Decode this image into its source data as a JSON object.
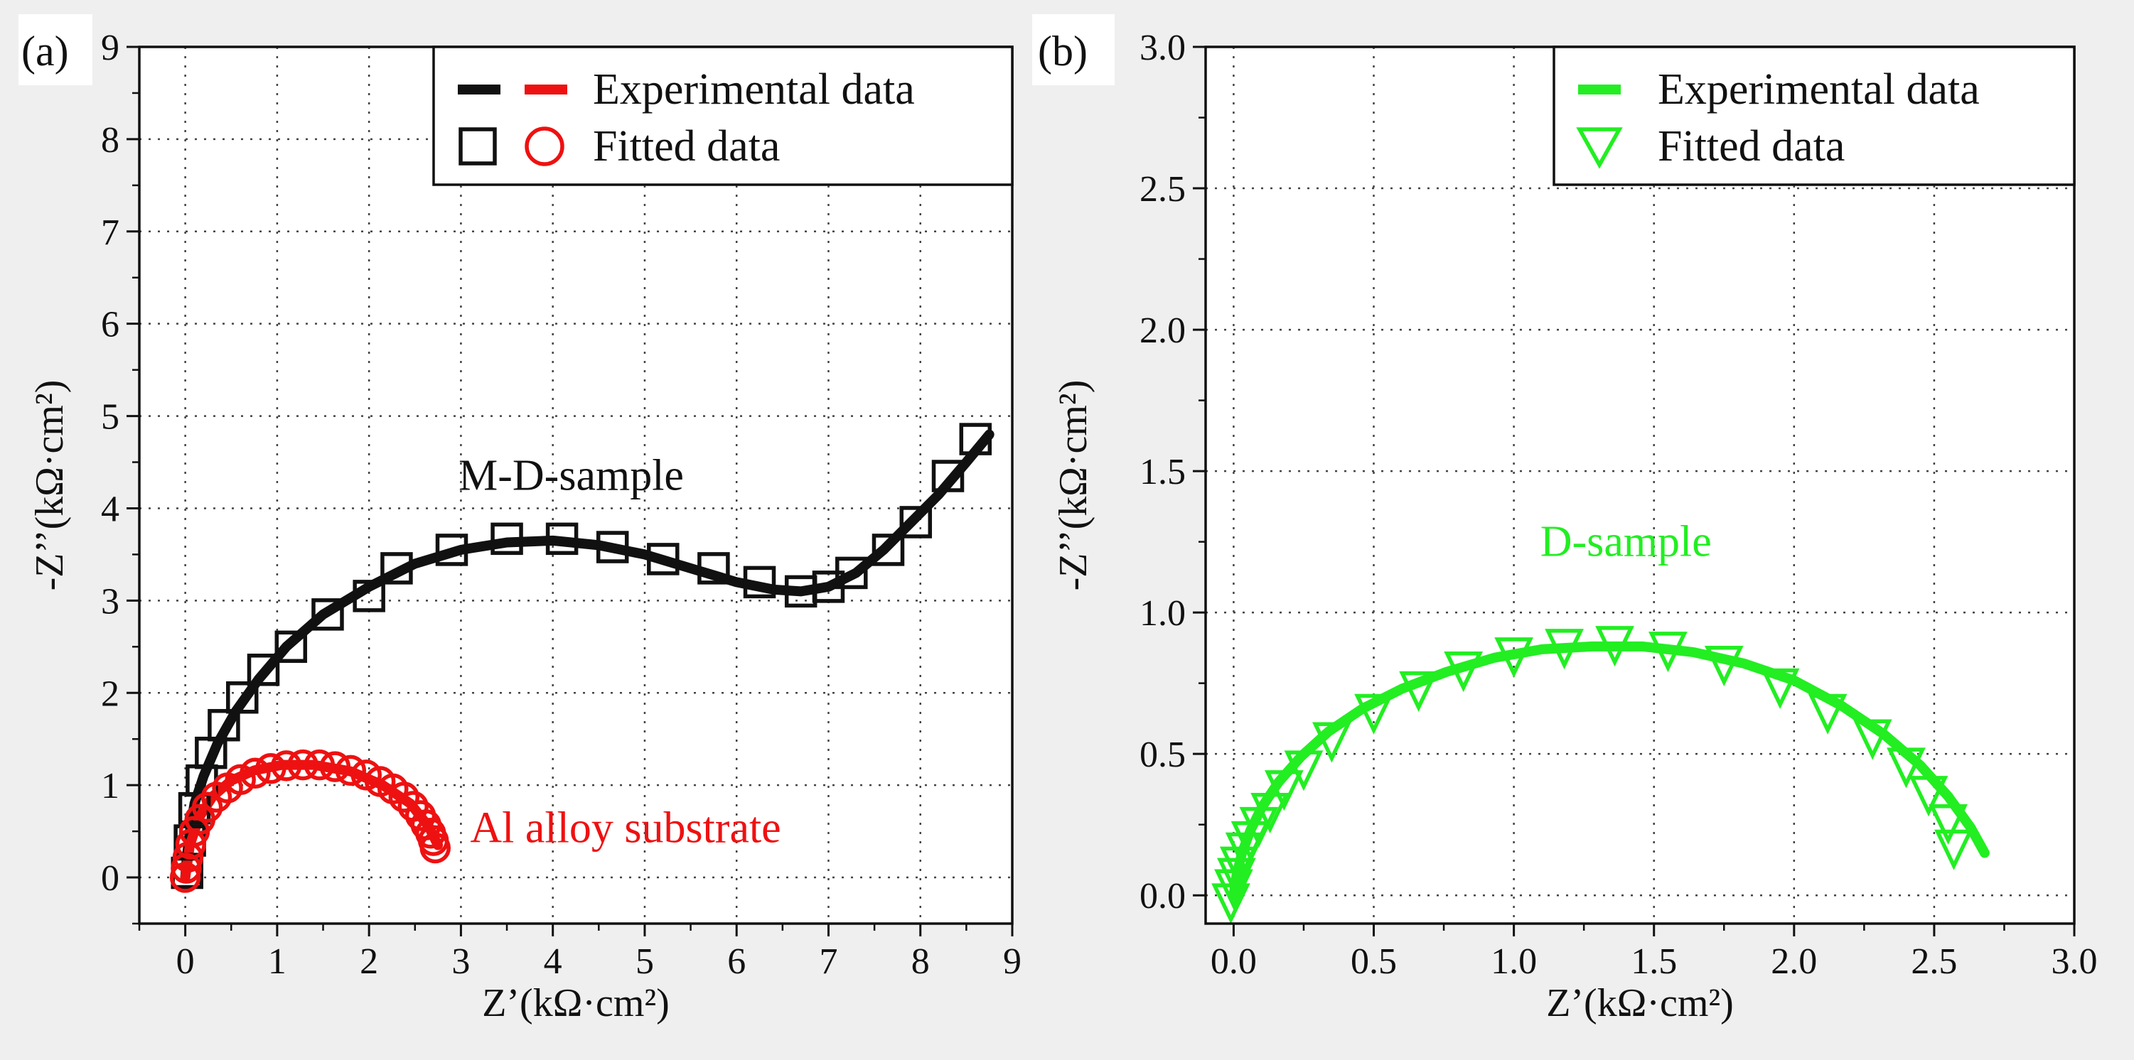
{
  "chart_data": [
    {
      "type": "scatter",
      "panel_label": "(a)",
      "xlabel": "Z’(kΩ·cm²)",
      "ylabel": "-Z’’(kΩ·cm²)",
      "xlim": [
        -0.5,
        9
      ],
      "ylim": [
        -0.5,
        9
      ],
      "xticks": [
        0,
        1,
        2,
        3,
        4,
        5,
        6,
        7,
        8,
        9
      ],
      "yticks": [
        0,
        1,
        2,
        3,
        4,
        5,
        6,
        7,
        8,
        9
      ],
      "grid": true,
      "legend_position": "top-right",
      "legend": [
        {
          "label": "Experimental data",
          "markers": [
            "black-line",
            "red-line"
          ]
        },
        {
          "label": "Fitted data",
          "markers": [
            "black-square",
            "red-circle"
          ]
        }
      ],
      "annotations": [
        {
          "text": "M-D-sample",
          "color": "#111111",
          "x": 4.2,
          "y": 4.2
        },
        {
          "text": "Al alloy substrate",
          "color": "#ee1111",
          "x": 3.1,
          "y": 0.38
        }
      ],
      "series": [
        {
          "name": "M-D-sample experimental",
          "kind": "line",
          "color": "#111111",
          "x": [
            0.0,
            0.02,
            0.05,
            0.1,
            0.2,
            0.35,
            0.55,
            0.8,
            1.1,
            1.5,
            2.0,
            2.5,
            3.0,
            3.5,
            4.0,
            4.5,
            5.0,
            5.5,
            6.0,
            6.4,
            6.7,
            7.0,
            7.3,
            7.6,
            7.9,
            8.2,
            8.5,
            8.75
          ],
          "y": [
            0.0,
            0.25,
            0.5,
            0.8,
            1.1,
            1.45,
            1.8,
            2.15,
            2.5,
            2.85,
            3.15,
            3.4,
            3.55,
            3.63,
            3.65,
            3.6,
            3.5,
            3.35,
            3.2,
            3.12,
            3.1,
            3.15,
            3.3,
            3.55,
            3.85,
            4.15,
            4.5,
            4.8
          ]
        },
        {
          "name": "M-D-sample fitted",
          "kind": "square",
          "color": "#111111",
          "x": [
            0.02,
            0.05,
            0.1,
            0.18,
            0.28,
            0.42,
            0.62,
            0.85,
            1.15,
            1.55,
            2.0,
            2.3,
            2.9,
            3.5,
            4.1,
            4.65,
            5.2,
            5.75,
            6.25,
            6.7,
            7.0,
            7.25,
            7.65,
            7.95,
            8.3,
            8.6
          ],
          "y": [
            0.05,
            0.4,
            0.75,
            1.05,
            1.35,
            1.65,
            1.95,
            2.25,
            2.5,
            2.85,
            3.05,
            3.35,
            3.55,
            3.67,
            3.67,
            3.58,
            3.45,
            3.35,
            3.2,
            3.1,
            3.15,
            3.3,
            3.55,
            3.85,
            4.35,
            4.75
          ]
        },
        {
          "name": "Al alloy substrate experimental",
          "kind": "line",
          "color": "#ee1111",
          "x": [
            0.0,
            0.05,
            0.15,
            0.3,
            0.5,
            0.75,
            1.05,
            1.4,
            1.8,
            2.15,
            2.45,
            2.65,
            2.75
          ],
          "y": [
            0.0,
            0.35,
            0.65,
            0.88,
            1.05,
            1.16,
            1.22,
            1.22,
            1.15,
            1.0,
            0.8,
            0.55,
            0.35
          ]
        },
        {
          "name": "Al alloy substrate fitted",
          "kind": "circle",
          "color": "#ee1111",
          "x": [
            0.0,
            0.01,
            0.03,
            0.06,
            0.1,
            0.16,
            0.24,
            0.34,
            0.46,
            0.6,
            0.76,
            0.93,
            1.1,
            1.28,
            1.46,
            1.63,
            1.8,
            1.97,
            2.12,
            2.26,
            2.38,
            2.48,
            2.56,
            2.62,
            2.67,
            2.7,
            2.72
          ],
          "y": [
            0.0,
            0.1,
            0.22,
            0.36,
            0.5,
            0.63,
            0.76,
            0.87,
            0.97,
            1.06,
            1.13,
            1.18,
            1.21,
            1.22,
            1.22,
            1.2,
            1.16,
            1.11,
            1.04,
            0.96,
            0.87,
            0.77,
            0.67,
            0.57,
            0.48,
            0.4,
            0.32
          ]
        }
      ]
    },
    {
      "type": "scatter",
      "panel_label": "(b)",
      "xlabel": "Z’(kΩ·cm²)",
      "ylabel": "-Z’’(kΩ·cm²)",
      "xlim": [
        -0.1,
        3.0
      ],
      "ylim": [
        -0.1,
        3.0
      ],
      "xticks": [
        0.0,
        0.5,
        1.0,
        1.5,
        2.0,
        2.5,
        3.0
      ],
      "xtick_labels": [
        "0.0",
        "0.5",
        "1.0",
        "1.5",
        "2.0",
        "2.5",
        "3.0"
      ],
      "yticks": [
        0.0,
        0.5,
        1.0,
        1.5,
        2.0,
        2.5,
        3.0
      ],
      "ytick_labels": [
        "0.0",
        "0.5",
        "1.0",
        "1.5",
        "2.0",
        "2.5",
        "3.0"
      ],
      "grid": true,
      "legend_position": "top-right",
      "legend": [
        {
          "label": "Experimental data",
          "markers": [
            "green-line"
          ]
        },
        {
          "label": "Fitted data",
          "markers": [
            "green-triangle"
          ]
        }
      ],
      "annotations": [
        {
          "text": "D-sample",
          "color": "#22ee22",
          "x": 1.4,
          "y": 1.2
        }
      ],
      "series": [
        {
          "name": "D-sample experimental",
          "kind": "line",
          "color": "#22ee22",
          "x": [
            0.0,
            0.01,
            0.03,
            0.06,
            0.1,
            0.16,
            0.24,
            0.34,
            0.46,
            0.6,
            0.76,
            0.93,
            1.1,
            1.28,
            1.46,
            1.64,
            1.82,
            2.0,
            2.17,
            2.32,
            2.45,
            2.55,
            2.63,
            2.68
          ],
          "y": [
            0.0,
            0.07,
            0.15,
            0.23,
            0.31,
            0.4,
            0.49,
            0.58,
            0.66,
            0.73,
            0.79,
            0.84,
            0.87,
            0.88,
            0.88,
            0.86,
            0.82,
            0.76,
            0.67,
            0.57,
            0.46,
            0.35,
            0.24,
            0.15
          ]
        },
        {
          "name": "D-sample fitted",
          "kind": "triangle",
          "color": "#22ee22",
          "x": [
            -0.01,
            0.0,
            0.01,
            0.02,
            0.04,
            0.06,
            0.09,
            0.13,
            0.18,
            0.25,
            0.35,
            0.5,
            0.66,
            0.82,
            1.0,
            1.18,
            1.36,
            1.55,
            1.75,
            1.95,
            2.12,
            2.28,
            2.4,
            2.48,
            2.55,
            2.57
          ],
          "y": [
            -0.02,
            0.03,
            0.07,
            0.11,
            0.16,
            0.2,
            0.25,
            0.3,
            0.38,
            0.45,
            0.55,
            0.65,
            0.73,
            0.8,
            0.85,
            0.88,
            0.89,
            0.87,
            0.82,
            0.74,
            0.65,
            0.56,
            0.46,
            0.36,
            0.26,
            0.17
          ]
        }
      ]
    }
  ]
}
